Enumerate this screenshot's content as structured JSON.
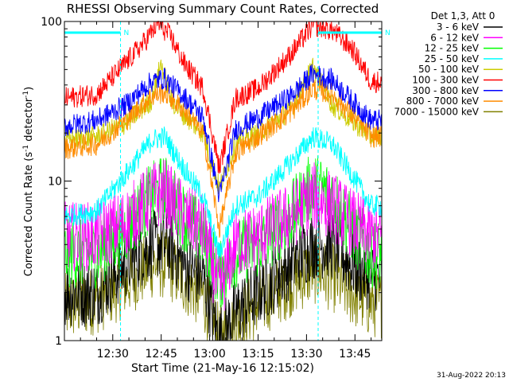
{
  "chart_data": {
    "type": "line",
    "title": "RHESSI Observing Summary Count Rates, Corrected",
    "xlabel": "Start Time (21-May-16 12:15:02)",
    "ylabel_main": "Corrected Count Rate (s",
    "ylabel_sup1": "-1",
    "ylabel_mid": " detector",
    "ylabel_sup2": "-1",
    "ylabel_end": ")",
    "yscale": "log",
    "ylim": [
      1,
      100
    ],
    "xlim_min": [
      15.03,
      113.3
    ],
    "yticks": [
      {
        "value": 1,
        "label": "1"
      },
      {
        "value": 10,
        "label": "10"
      },
      {
        "value": 100,
        "label": "100"
      }
    ],
    "xticks": [
      {
        "min": 30,
        "label": "12:30"
      },
      {
        "min": 45,
        "label": "12:45"
      },
      {
        "min": 60,
        "label": "13:00"
      },
      {
        "min": 75,
        "label": "13:15"
      },
      {
        "min": 90,
        "label": "13:30"
      },
      {
        "min": 105,
        "label": "13:45"
      }
    ],
    "legend_header": "Det 1,3, Att 0",
    "legend_placement": "right",
    "series": [
      {
        "name": "3 - 6 keV",
        "color": "#000000",
        "key": [
          [
            15,
            2
          ],
          [
            25,
            2
          ],
          [
            34,
            3
          ],
          [
            42,
            4
          ],
          [
            47,
            4
          ],
          [
            52,
            3
          ],
          [
            58,
            2.5
          ],
          [
            63,
            1
          ],
          [
            68,
            1.5
          ],
          [
            75,
            2
          ],
          [
            85,
            3
          ],
          [
            92,
            4
          ],
          [
            98,
            4
          ],
          [
            104,
            3
          ],
          [
            110,
            2.5
          ]
        ]
      },
      {
        "name": "6 - 12 keV",
        "color": "#ff00ff",
        "key": [
          [
            15,
            4.5
          ],
          [
            25,
            4.5
          ],
          [
            34,
            5.5
          ],
          [
            42,
            8
          ],
          [
            46,
            8.5
          ],
          [
            52,
            6
          ],
          [
            58,
            5
          ],
          [
            63,
            2
          ],
          [
            68,
            4
          ],
          [
            75,
            4.5
          ],
          [
            85,
            6
          ],
          [
            92,
            8
          ],
          [
            98,
            7
          ],
          [
            104,
            5.5
          ],
          [
            110,
            4.5
          ]
        ]
      },
      {
        "name": "12 - 25 keV",
        "color": "#00ff00",
        "key": [
          [
            15,
            3.5
          ],
          [
            25,
            3.5
          ],
          [
            34,
            5
          ],
          [
            42,
            8
          ],
          [
            46,
            9
          ],
          [
            52,
            6
          ],
          [
            58,
            4.5
          ],
          [
            63,
            2.5
          ],
          [
            68,
            3.5
          ],
          [
            75,
            4
          ],
          [
            85,
            6
          ],
          [
            92,
            9.5
          ],
          [
            98,
            8
          ],
          [
            104,
            5
          ],
          [
            110,
            3.5
          ]
        ]
      },
      {
        "name": "25 - 50 keV",
        "color": "#00ffff",
        "key": [
          [
            15,
            6
          ],
          [
            25,
            6.5
          ],
          [
            34,
            11
          ],
          [
            42,
            18
          ],
          [
            46,
            19
          ],
          [
            52,
            12
          ],
          [
            58,
            8
          ],
          [
            63,
            3.5
          ],
          [
            68,
            7
          ],
          [
            75,
            8
          ],
          [
            85,
            13
          ],
          [
            92,
            19
          ],
          [
            98,
            17
          ],
          [
            104,
            11
          ],
          [
            110,
            7
          ]
        ]
      },
      {
        "name": "50 - 100 keV",
        "color": "#cccc00",
        "key": [
          [
            15,
            18
          ],
          [
            25,
            19
          ],
          [
            34,
            23
          ],
          [
            42,
            32
          ],
          [
            45,
            55
          ],
          [
            48,
            32
          ],
          [
            52,
            26
          ],
          [
            58,
            20
          ],
          [
            63,
            9
          ],
          [
            68,
            17
          ],
          [
            75,
            20
          ],
          [
            85,
            28
          ],
          [
            92,
            52
          ],
          [
            98,
            30
          ],
          [
            104,
            24
          ],
          [
            110,
            19
          ]
        ]
      },
      {
        "name": "100 - 300 keV",
        "color": "#ff0000",
        "key": [
          [
            15,
            33
          ],
          [
            25,
            35
          ],
          [
            34,
            55
          ],
          [
            40,
            75
          ],
          [
            44,
            98
          ],
          [
            48,
            80
          ],
          [
            52,
            55
          ],
          [
            58,
            38
          ],
          [
            63,
            12
          ],
          [
            68,
            33
          ],
          [
            75,
            38
          ],
          [
            85,
            62
          ],
          [
            92,
            95
          ],
          [
            98,
            88
          ],
          [
            104,
            68
          ],
          [
            110,
            42
          ]
        ]
      },
      {
        "name": "300 - 800 keV",
        "color": "#0000ff",
        "key": [
          [
            15,
            22
          ],
          [
            25,
            24
          ],
          [
            34,
            30
          ],
          [
            42,
            42
          ],
          [
            46,
            44
          ],
          [
            52,
            34
          ],
          [
            58,
            25
          ],
          [
            63,
            8
          ],
          [
            68,
            21
          ],
          [
            75,
            25
          ],
          [
            85,
            34
          ],
          [
            92,
            47
          ],
          [
            98,
            43
          ],
          [
            104,
            32
          ],
          [
            110,
            24
          ]
        ]
      },
      {
        "name": "800 - 7000 keV",
        "color": "#ff8c00",
        "key": [
          [
            15,
            16
          ],
          [
            25,
            17
          ],
          [
            34,
            24
          ],
          [
            42,
            34
          ],
          [
            46,
            36
          ],
          [
            52,
            28
          ],
          [
            58,
            20
          ],
          [
            63,
            5
          ],
          [
            68,
            15
          ],
          [
            75,
            19
          ],
          [
            85,
            27
          ],
          [
            92,
            38
          ],
          [
            98,
            35
          ],
          [
            104,
            26
          ],
          [
            110,
            19
          ]
        ]
      },
      {
        "name": "7000 - 15000 keV",
        "color": "#808000",
        "key": [
          [
            15,
            1.6
          ],
          [
            25,
            1.8
          ],
          [
            34,
            2.3
          ],
          [
            42,
            3
          ],
          [
            47,
            3
          ],
          [
            52,
            2.4
          ],
          [
            58,
            1.9
          ],
          [
            63,
            1
          ],
          [
            68,
            1.3
          ],
          [
            75,
            1.7
          ],
          [
            85,
            2.3
          ],
          [
            92,
            2.8
          ],
          [
            98,
            2.5
          ],
          [
            104,
            2
          ],
          [
            110,
            1.7
          ]
        ]
      }
    ],
    "annotations": {
      "flag_label": "N",
      "flag_color": "#00ffff",
      "flag_intervals": [
        [
          15.03,
          32.4
        ],
        [
          93.6,
          113.3
        ]
      ]
    },
    "footer_timestamp": "31-Aug-2022 20:13"
  }
}
